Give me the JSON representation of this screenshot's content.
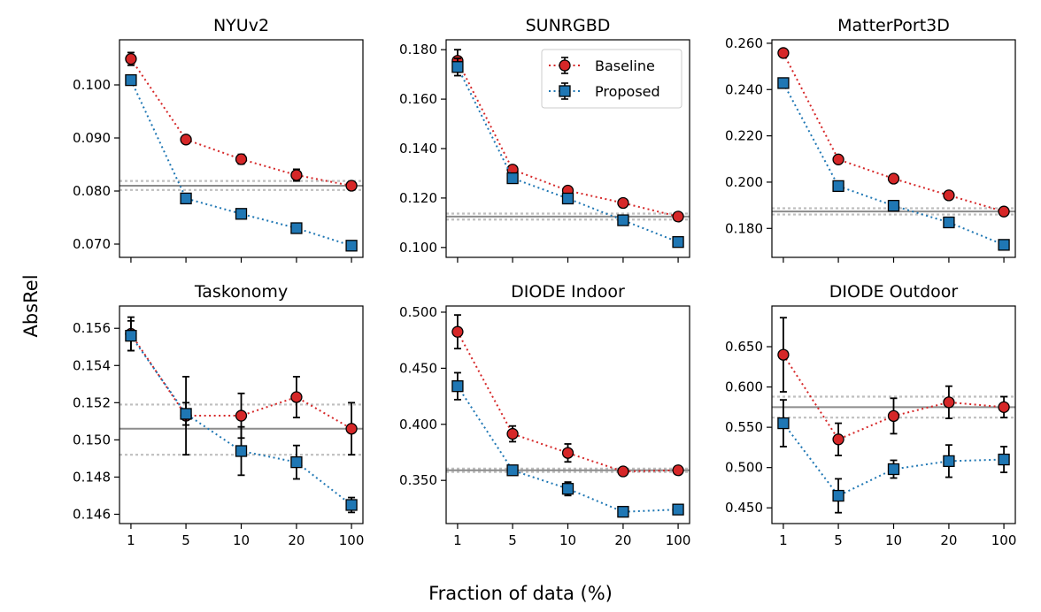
{
  "ylabel": "AbsRel",
  "xlabel": "Fraction of data (%)",
  "legend": {
    "entries": [
      {
        "name": "Baseline",
        "color": "#d62728",
        "marker": "circle"
      },
      {
        "name": "Proposed",
        "color": "#1f77b4",
        "marker": "square"
      }
    ]
  },
  "colors": {
    "baseline": "#d62728",
    "proposed": "#1f77b4",
    "ref_line": "#8c8c8c",
    "ref_band": "#bfbfbf"
  },
  "chart_data": [
    {
      "type": "line",
      "title": "NYUv2",
      "categories": [
        "1",
        "5",
        "10",
        "20",
        "100"
      ],
      "ylim": [
        0.0675,
        0.1085
      ],
      "yticks": [
        0.07,
        0.08,
        0.09,
        0.1
      ],
      "ytick_labels": [
        "0.070",
        "0.080",
        "0.090",
        "0.100"
      ],
      "reference": {
        "value": 0.081,
        "band_low": 0.0802,
        "band_high": 0.0819
      },
      "series": [
        {
          "name": "Baseline",
          "values": [
            0.1049,
            0.0897,
            0.086,
            0.083,
            0.081
          ],
          "errors": [
            0.0012,
            0.0004,
            0.0009,
            0.0011,
            0.0007
          ]
        },
        {
          "name": "Proposed",
          "values": [
            0.1009,
            0.0786,
            0.0757,
            0.073,
            0.0697
          ],
          "errors": [
            0.0003,
            0.0003,
            0.0002,
            0.0002,
            0.0002
          ]
        }
      ]
    },
    {
      "type": "line",
      "title": "SUNRGBD",
      "categories": [
        "1",
        "5",
        "10",
        "20",
        "100"
      ],
      "ylim": [
        0.096,
        0.184
      ],
      "yticks": [
        0.1,
        0.12,
        0.14,
        0.16,
        0.18
      ],
      "ytick_labels": [
        "0.100",
        "0.120",
        "0.140",
        "0.160",
        "0.180"
      ],
      "reference": {
        "value": 0.1125,
        "band_low": 0.1113,
        "band_high": 0.1137
      },
      "series": [
        {
          "name": "Baseline",
          "values": [
            0.1755,
            0.1315,
            0.123,
            0.118,
            0.1125
          ],
          "errors": [
            0.0045,
            0.0015,
            0.001,
            0.0008,
            0.0006
          ]
        },
        {
          "name": "Proposed",
          "values": [
            0.173,
            0.128,
            0.1198,
            0.111,
            0.1022
          ],
          "errors": [
            0.0035,
            0.0012,
            0.001,
            0.0008,
            0.0006
          ]
        }
      ]
    },
    {
      "type": "line",
      "title": "MatterPort3D",
      "categories": [
        "1",
        "5",
        "10",
        "20",
        "100"
      ],
      "ylim": [
        0.1675,
        0.2615
      ],
      "yticks": [
        0.18,
        0.2,
        0.22,
        0.24,
        0.26
      ],
      "ytick_labels": [
        "0.180",
        "0.200",
        "0.220",
        "0.240",
        "0.260"
      ],
      "reference": {
        "value": 0.1873,
        "band_low": 0.186,
        "band_high": 0.1887
      },
      "series": [
        {
          "name": "Baseline",
          "values": [
            0.2558,
            0.2098,
            0.2015,
            0.1943,
            0.1873
          ],
          "errors": [
            0.0005,
            0.0005,
            0.0005,
            0.0005,
            0.0005
          ]
        },
        {
          "name": "Proposed",
          "values": [
            0.2428,
            0.1983,
            0.1898,
            0.1826,
            0.1729
          ],
          "errors": [
            0.0005,
            0.0005,
            0.0005,
            0.0005,
            0.0005
          ]
        }
      ]
    },
    {
      "type": "line",
      "title": "Taskonomy",
      "categories": [
        "1",
        "5",
        "10",
        "20",
        "100"
      ],
      "ylim": [
        0.1455,
        0.1572
      ],
      "yticks": [
        0.146,
        0.148,
        0.15,
        0.152,
        0.154,
        0.156
      ],
      "ytick_labels": [
        "0.146",
        "0.148",
        "0.150",
        "0.152",
        "0.154",
        "0.156"
      ],
      "reference": {
        "value": 0.1506,
        "band_low": 0.1492,
        "band_high": 0.1519
      },
      "series": [
        {
          "name": "Baseline",
          "values": [
            0.1557,
            0.1513,
            0.1513,
            0.1523,
            0.1506
          ],
          "errors": [
            0.0009,
            0.0021,
            0.0012,
            0.0011,
            0.0014
          ]
        },
        {
          "name": "Proposed",
          "values": [
            0.1556,
            0.1514,
            0.1494,
            0.1488,
            0.1465
          ],
          "errors": [
            0.0008,
            0.0006,
            0.0013,
            0.0009,
            0.0004
          ]
        }
      ]
    },
    {
      "type": "line",
      "title": "DIODE Indoor",
      "categories": [
        "1",
        "5",
        "10",
        "20",
        "100"
      ],
      "ylim": [
        0.3115,
        0.5055
      ],
      "yticks": [
        0.35,
        0.4,
        0.45,
        0.5
      ],
      "ytick_labels": [
        "0.350",
        "0.400",
        "0.450",
        "0.500"
      ],
      "reference": {
        "value": 0.359,
        "band_low": 0.3575,
        "band_high": 0.3605
      },
      "series": [
        {
          "name": "Baseline",
          "values": [
            0.4825,
            0.3915,
            0.3745,
            0.358,
            0.359
          ],
          "errors": [
            0.015,
            0.007,
            0.008,
            0.0015,
            0.0015
          ]
        },
        {
          "name": "Proposed",
          "values": [
            0.434,
            0.359,
            0.3425,
            0.322,
            0.324
          ],
          "errors": [
            0.012,
            0.002,
            0.006,
            0.001,
            0.001
          ]
        }
      ]
    },
    {
      "type": "line",
      "title": "DIODE Outdoor",
      "categories": [
        "1",
        "5",
        "10",
        "20",
        "100"
      ],
      "ylim": [
        0.4305,
        0.7005
      ],
      "yticks": [
        0.45,
        0.5,
        0.55,
        0.6,
        0.65
      ],
      "ytick_labels": [
        "0.450",
        "0.500",
        "0.550",
        "0.600",
        "0.650"
      ],
      "reference": {
        "value": 0.575,
        "band_low": 0.562,
        "band_high": 0.588
      },
      "series": [
        {
          "name": "Baseline",
          "values": [
            0.64,
            0.535,
            0.564,
            0.581,
            0.575
          ],
          "errors": [
            0.046,
            0.02,
            0.022,
            0.02,
            0.013
          ]
        },
        {
          "name": "Proposed",
          "values": [
            0.555,
            0.465,
            0.498,
            0.508,
            0.51
          ],
          "errors": [
            0.029,
            0.021,
            0.011,
            0.02,
            0.016
          ]
        }
      ]
    }
  ]
}
